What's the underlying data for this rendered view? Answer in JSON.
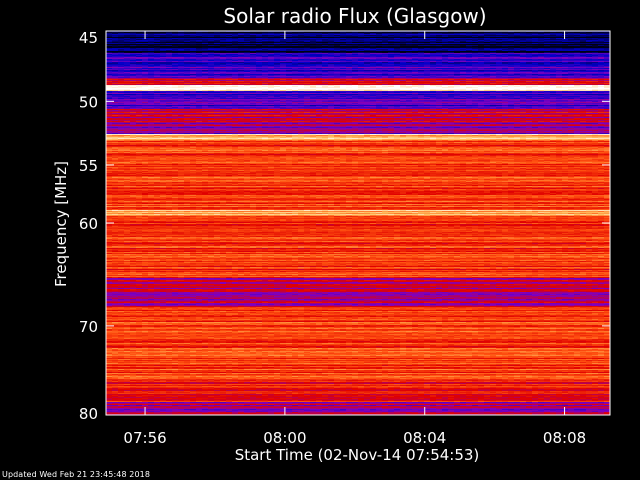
{
  "header": {
    "title": "Solar radio Flux (Glasgow)"
  },
  "footer": {
    "updated": "Updated Wed Feb 21 23:45:48 2018"
  },
  "chart_data": {
    "type": "heatmap",
    "title": "Solar radio Flux (Glasgow)",
    "xlabel": "Start Time (02-Nov-14 07:54:53)",
    "ylabel": "Frequency [MHz]",
    "x_ticks": [
      "07:56",
      "08:00",
      "08:04",
      "08:08"
    ],
    "x_tick_minutes": [
      56,
      60,
      64,
      68
    ],
    "x_range_minutes": [
      54.883,
      69.3
    ],
    "y_ticks": [
      "45",
      "50",
      "55",
      "60",
      "70",
      "80"
    ],
    "y_tick_values": [
      45,
      50,
      55,
      60,
      70,
      80
    ],
    "y_range": [
      45,
      80
    ],
    "y_scale": "log",
    "y_inverted": true,
    "colormap": [
      "#000010",
      "#0000c8",
      "#8000c0",
      "#e00000",
      "#ff5010",
      "#ffc060",
      "#ffffff"
    ],
    "bands": [
      {
        "f_from": 45.0,
        "f_to": 46.5,
        "level": 0.05
      },
      {
        "f_from": 46.5,
        "f_to": 48.3,
        "level": 0.22
      },
      {
        "f_from": 48.3,
        "f_to": 48.8,
        "level": 0.5
      },
      {
        "f_from": 48.8,
        "f_to": 49.2,
        "level": 1.0
      },
      {
        "f_from": 49.2,
        "f_to": 50.6,
        "level": 0.28
      },
      {
        "f_from": 50.6,
        "f_to": 51.6,
        "level": 0.45
      },
      {
        "f_from": 51.6,
        "f_to": 52.5,
        "level": 0.35
      },
      {
        "f_from": 52.5,
        "f_to": 53.0,
        "level": 0.85
      },
      {
        "f_from": 53.0,
        "f_to": 58.8,
        "level": 0.62
      },
      {
        "f_from": 58.8,
        "f_to": 59.4,
        "level": 0.8
      },
      {
        "f_from": 59.4,
        "f_to": 65.2,
        "level": 0.6
      },
      {
        "f_from": 65.2,
        "f_to": 68.0,
        "level": 0.42
      },
      {
        "f_from": 68.0,
        "f_to": 76.0,
        "level": 0.62
      },
      {
        "f_from": 76.0,
        "f_to": 78.5,
        "level": 0.56
      },
      {
        "f_from": 78.5,
        "f_to": 80.0,
        "level": 0.4
      }
    ]
  }
}
